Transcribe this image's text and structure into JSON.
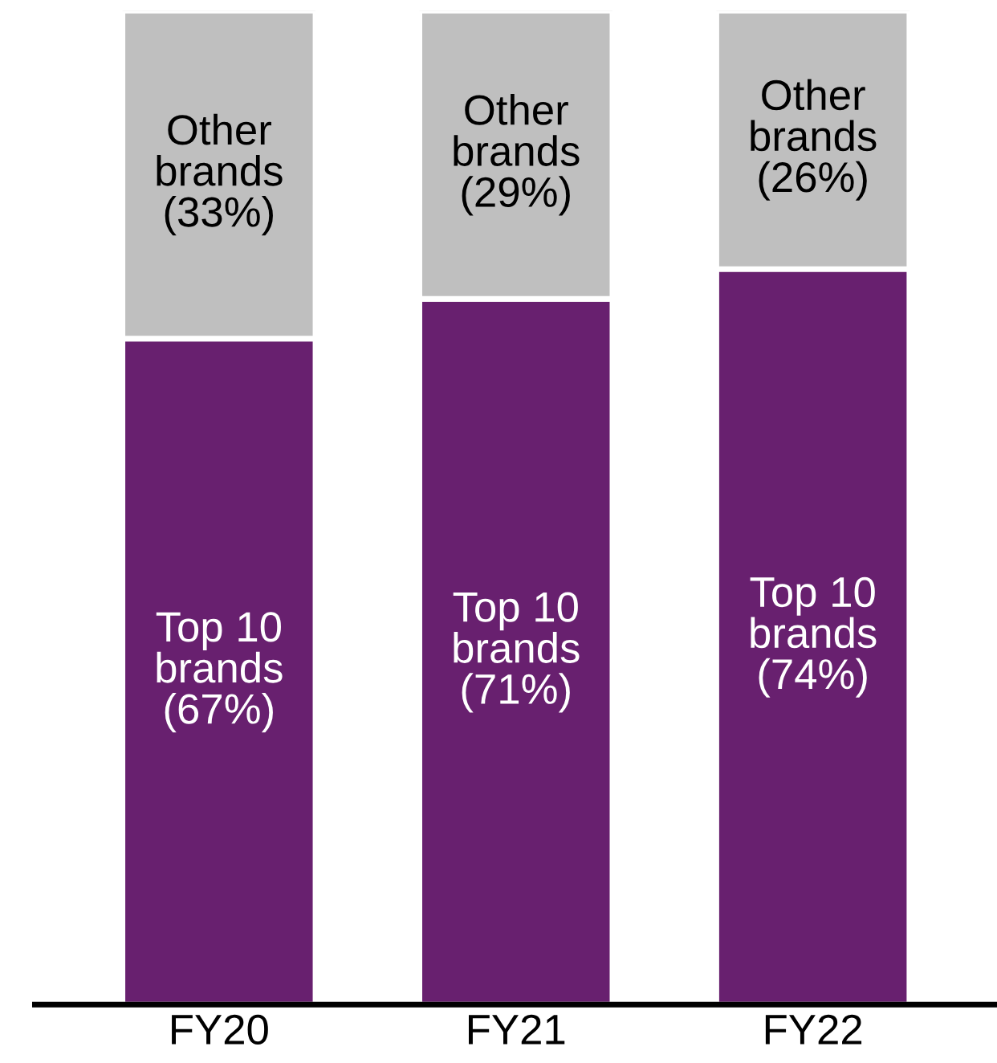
{
  "chart_data": {
    "type": "bar",
    "stacked": true,
    "categories": [
      "FY20",
      "FY21",
      "FY22"
    ],
    "series": [
      {
        "name": "Top 10 brands",
        "color": "#68206f",
        "values": [
          67,
          71,
          74
        ],
        "value_labels": [
          "(67%)",
          "(71%)",
          "(74%)"
        ]
      },
      {
        "name": "Other brands",
        "color": "#bfbfbf",
        "values": [
          33,
          29,
          26
        ],
        "value_labels": [
          "(33%)",
          "(29%)",
          "(26%)"
        ]
      }
    ],
    "ylim": [
      0,
      100
    ],
    "tick_labels": "x",
    "grid": false,
    "legend": false
  }
}
